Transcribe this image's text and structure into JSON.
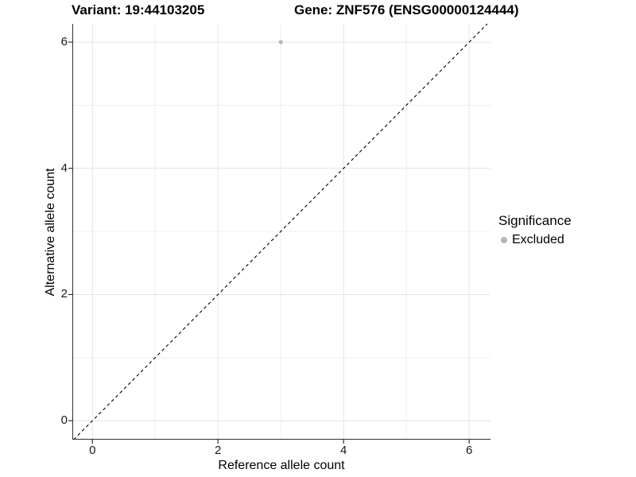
{
  "chart_data": {
    "type": "scatter",
    "title_left": "Variant: 19:44103205",
    "title_right": "Gene: ZNF576 (ENSG00000124444)",
    "xlabel": "Reference allele count",
    "ylabel": "Alternative allele count",
    "xlim": [
      -0.32,
      6.34
    ],
    "ylim": [
      -0.3,
      6.29
    ],
    "x_ticks": [
      0,
      2,
      4,
      6
    ],
    "y_ticks": [
      0,
      2,
      4,
      6
    ],
    "x_minor_grid": [
      1,
      3,
      5
    ],
    "y_minor_grid": [
      1,
      3,
      5
    ],
    "grid": "on",
    "legend_position": "right",
    "series": [
      {
        "name": "Excluded",
        "marker_color": "#b5b5b5",
        "points": [
          {
            "x": 3,
            "y": 6
          }
        ]
      }
    ],
    "reference_line": {
      "kind": "identity y=x",
      "from": [
        -0.3,
        -0.3
      ],
      "to": [
        6.29,
        6.29
      ],
      "style": "dashed",
      "color": "#000000"
    }
  },
  "legend": {
    "title": "Significance",
    "items": [
      {
        "label": "Excluded",
        "swatch_color": "#b5b5b5"
      }
    ]
  },
  "colors": {
    "background": "#ffffff",
    "major_grid": "#e4e4e4",
    "minor_grid": "#efefef",
    "axis_line": "#2e2e2e",
    "tick_text": "#1a1a1a"
  }
}
